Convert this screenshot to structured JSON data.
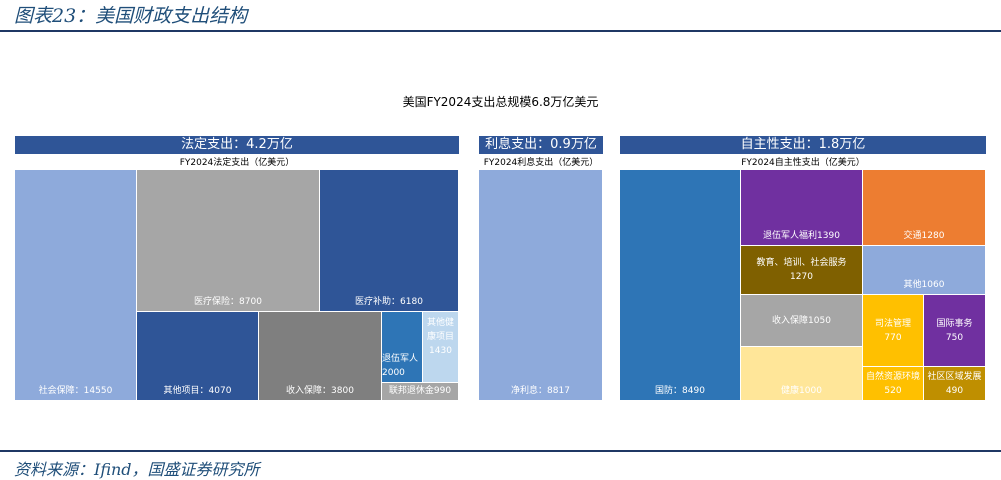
{
  "figure_title": "图表23：美国财政支出结构",
  "source": "资料来源：Ifind，国盛证券研究所",
  "chart_data": {
    "type": "treemap",
    "title": "美国FY2024支出总规模6.8万亿美元",
    "panels": [
      {
        "header": "法定支出：4.2万亿",
        "subtitle": "FY2024法定支出（亿美元）",
        "items": [
          {
            "name": "社会保障",
            "value": 14550,
            "label": "社会保障：14550",
            "color": "#8eaadb"
          },
          {
            "name": "医疗保险",
            "value": 8700,
            "label": "医疗保险：8700",
            "color": "#a6a6a6"
          },
          {
            "name": "医疗补助",
            "value": 6180,
            "label": "医疗补助：6180",
            "color": "#2f5597"
          },
          {
            "name": "其他项目",
            "value": 4070,
            "label": "其他项目：4070",
            "color": "#2f5597"
          },
          {
            "name": "收入保障",
            "value": 3800,
            "label": "收入保障：3800",
            "color": "#7f7f7f"
          },
          {
            "name": "退伍军人",
            "value": 2000,
            "label": "退伍军人 2000",
            "color": "#2e75b6"
          },
          {
            "name": "其他健康项目",
            "value": 1430,
            "label": "其他健康项目1430",
            "color": "#bdd7ee"
          },
          {
            "name": "联邦退休金",
            "value": 990,
            "label": "联邦退休金990",
            "color": "#a6a6a6"
          }
        ]
      },
      {
        "header": "利息支出：0.9万亿",
        "subtitle": "FY2024利息支出（亿美元）",
        "items": [
          {
            "name": "净利息",
            "value": 8817,
            "label": "净利息：8817",
            "color": "#8eaadb"
          }
        ]
      },
      {
        "header": "自主性支出：1.8万亿",
        "subtitle": "FY2024自主性支出（亿美元）",
        "items": [
          {
            "name": "国防",
            "value": 8490,
            "label": "国防：8490",
            "color": "#2e75b6"
          },
          {
            "name": "退伍军人福利",
            "value": 1390,
            "label": "退伍军人福利1390",
            "color": "#7030a0"
          },
          {
            "name": "交通",
            "value": 1280,
            "label": "交通1280",
            "color": "#ed7d31"
          },
          {
            "name": "教育、培训、社会服务",
            "value": 1270,
            "label": "教育、培训、社会服务 1270",
            "color": "#7f6000"
          },
          {
            "name": "其他",
            "value": 1060,
            "label": "其他1060",
            "color": "#8eaadb"
          },
          {
            "name": "收入保障",
            "value": 1050,
            "label": "收入保障1050",
            "color": "#a6a6a6"
          },
          {
            "name": "健康",
            "value": 1000,
            "label": "健康1000",
            "color": "#ffe699"
          },
          {
            "name": "司法管理",
            "value": 770,
            "label": "司法管理 770",
            "color": "#ffc000"
          },
          {
            "name": "国际事务",
            "value": 750,
            "label": "国际事务 750",
            "color": "#7030a0"
          },
          {
            "name": "自然资源环境",
            "value": 520,
            "label": "自然资源环境 520",
            "color": "#ffc000"
          },
          {
            "name": "社区区域发展",
            "value": 490,
            "label": "社区区域发展 490",
            "color": "#bf8f00"
          }
        ]
      }
    ]
  }
}
